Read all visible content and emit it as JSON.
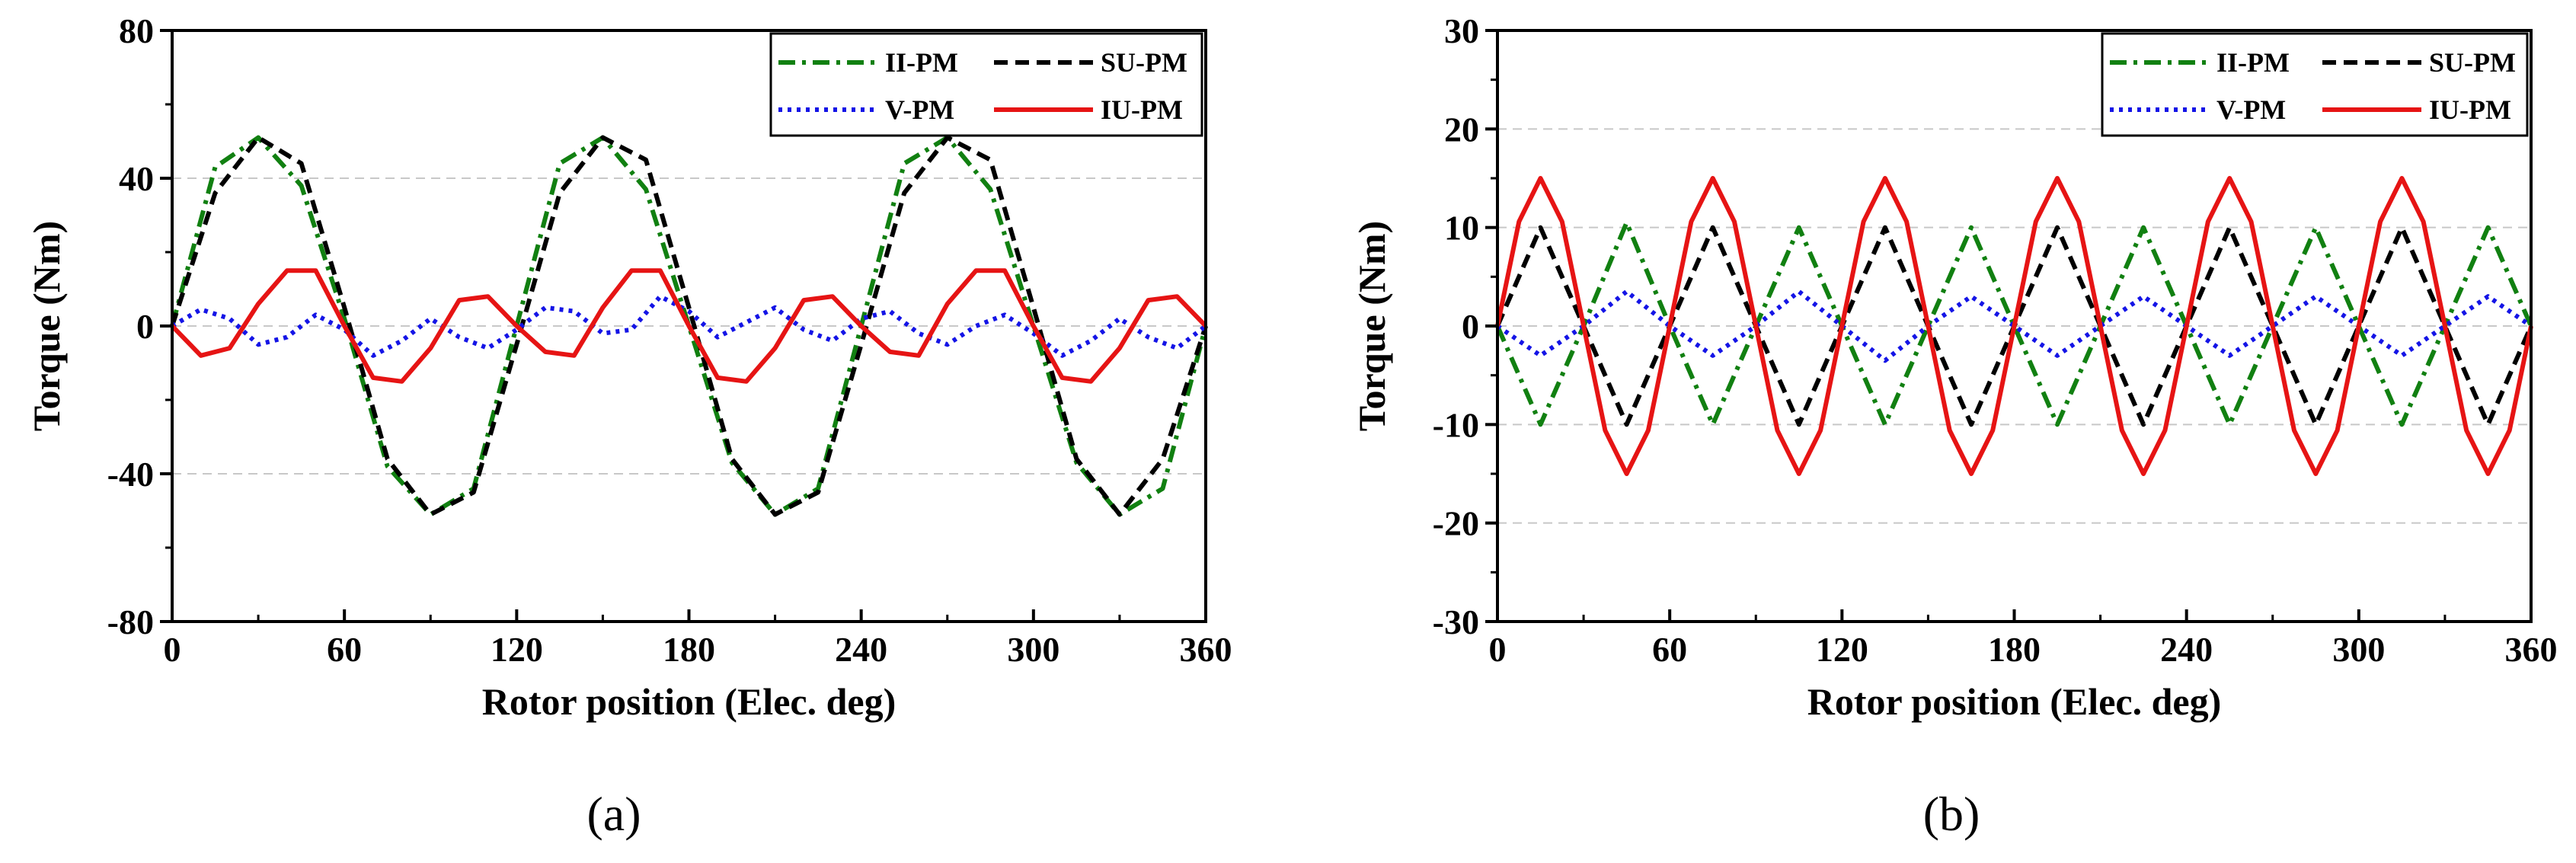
{
  "chart_data": [
    {
      "type": "line",
      "panel_label": "(a)",
      "xlabel": "Rotor position (Elec. deg)",
      "ylabel": "Torque (Nm)",
      "xlim": [
        0,
        360
      ],
      "ylim": [
        -80,
        80
      ],
      "xticks": [
        0,
        60,
        120,
        180,
        240,
        300,
        360
      ],
      "yticks": [
        -80,
        -40,
        0,
        40,
        80
      ],
      "grid_y": [
        -40,
        0,
        40
      ],
      "legend_position": "top-right",
      "series": [
        {
          "name": "II-PM",
          "color": "#118011",
          "dash": "dashdot",
          "x": [
            0,
            15,
            30,
            45,
            60,
            75,
            90,
            105,
            120,
            135,
            150,
            165,
            180,
            195,
            210,
            225,
            240,
            255,
            270,
            285,
            300,
            315,
            330,
            345,
            360
          ],
          "values": [
            0,
            43,
            51,
            38,
            2,
            -38,
            -51,
            -44,
            0,
            44,
            51,
            37,
            0,
            -37,
            -51,
            -44,
            0,
            44,
            51,
            37,
            0,
            -37,
            -51,
            -44,
            0
          ]
        },
        {
          "name": "SU-PM",
          "color": "#000000",
          "dash": "dash",
          "x": [
            0,
            15,
            30,
            45,
            60,
            75,
            90,
            105,
            120,
            135,
            150,
            165,
            180,
            195,
            210,
            225,
            240,
            255,
            270,
            285,
            300,
            315,
            330,
            345,
            360
          ],
          "values": [
            0,
            36,
            51,
            44,
            5,
            -36,
            -51,
            -45,
            -5,
            36,
            51,
            45,
            5,
            -36,
            -51,
            -45,
            -5,
            36,
            51,
            45,
            5,
            -36,
            -51,
            -36,
            0
          ]
        },
        {
          "name": "V-PM",
          "color": "#1414e6",
          "dash": "dot",
          "x": [
            0,
            10,
            20,
            30,
            40,
            50,
            60,
            70,
            80,
            90,
            100,
            110,
            120,
            130,
            140,
            150,
            160,
            170,
            180,
            190,
            200,
            210,
            220,
            230,
            240,
            250,
            260,
            270,
            280,
            290,
            300,
            310,
            320,
            330,
            340,
            350,
            360
          ],
          "values": [
            0,
            4.5,
            2,
            -5,
            -3,
            3,
            -1,
            -8,
            -4,
            2,
            -3,
            -6,
            -1,
            5,
            4,
            -2,
            -1,
            8,
            4,
            -3,
            1,
            5,
            -1,
            -4,
            2,
            4,
            -2,
            -5,
            0,
            3,
            -2,
            -8,
            -4,
            2,
            -3,
            -6,
            0
          ]
        },
        {
          "name": "IU-PM",
          "color": "#e61414",
          "dash": "solid",
          "x": [
            0,
            10,
            20,
            30,
            40,
            50,
            60,
            70,
            80,
            90,
            100,
            110,
            120,
            130,
            140,
            150,
            160,
            170,
            180,
            190,
            200,
            210,
            220,
            230,
            240,
            250,
            260,
            270,
            280,
            290,
            300,
            310,
            320,
            330,
            340,
            350,
            360
          ],
          "values": [
            0,
            -8,
            -6,
            6,
            15,
            15,
            0,
            -14,
            -15,
            -6,
            7,
            8,
            0,
            -7,
            -8,
            5,
            15,
            15,
            0,
            -14,
            -15,
            -6,
            7,
            8,
            0,
            -7,
            -8,
            6,
            15,
            15,
            0,
            -14,
            -15,
            -6,
            7,
            8,
            0
          ]
        }
      ]
    },
    {
      "type": "line",
      "panel_label": "(b)",
      "xlabel": "Rotor position (Elec. deg)",
      "ylabel": "Torque (Nm)",
      "xlim": [
        0,
        360
      ],
      "ylim": [
        -30,
        30
      ],
      "xticks": [
        0,
        60,
        120,
        180,
        240,
        300,
        360
      ],
      "yticks": [
        -30,
        -20,
        -10,
        0,
        10,
        20,
        30
      ],
      "grid_y": [
        -20,
        -10,
        0,
        10,
        20
      ],
      "legend_position": "top-right",
      "series": [
        {
          "name": "II-PM",
          "color": "#118011",
          "dash": "dashdot",
          "x": [
            0,
            15,
            30,
            45,
            60,
            75,
            90,
            105,
            120,
            135,
            150,
            165,
            180,
            195,
            210,
            225,
            240,
            255,
            270,
            285,
            300,
            315,
            330,
            345,
            360
          ],
          "values": [
            0,
            -10,
            0,
            10.5,
            0,
            -10,
            0,
            10,
            0,
            -10,
            0,
            10,
            0,
            -10,
            0,
            10,
            0,
            -10,
            0,
            10,
            0,
            -10,
            0,
            10,
            0
          ]
        },
        {
          "name": "SU-PM",
          "color": "#000000",
          "dash": "dash",
          "x": [
            0,
            15,
            30,
            45,
            60,
            75,
            90,
            105,
            120,
            135,
            150,
            165,
            180,
            195,
            210,
            225,
            240,
            255,
            270,
            285,
            300,
            315,
            330,
            345,
            360
          ],
          "values": [
            0,
            10,
            0,
            -10,
            0,
            10,
            0,
            -10,
            0,
            10,
            0,
            -10,
            0,
            10,
            0,
            -10,
            0,
            10,
            0,
            -10,
            0,
            10,
            0,
            -10,
            0
          ]
        },
        {
          "name": "V-PM",
          "color": "#1414e6",
          "dash": "dot",
          "x": [
            0,
            15,
            30,
            45,
            60,
            75,
            90,
            105,
            120,
            135,
            150,
            165,
            180,
            195,
            210,
            225,
            240,
            255,
            270,
            285,
            300,
            315,
            330,
            345,
            360
          ],
          "values": [
            0,
            -3,
            0,
            3.5,
            0,
            -3,
            0,
            3.5,
            0,
            -3.5,
            0,
            3,
            0,
            -3,
            0,
            3,
            0,
            -3,
            0,
            3,
            0,
            -3,
            0,
            3,
            0
          ]
        },
        {
          "name": "IU-PM",
          "color": "#e61414",
          "dash": "solid",
          "x": [
            0,
            7.5,
            15,
            22.5,
            30,
            37.5,
            45,
            52.5,
            60,
            67.5,
            75,
            82.5,
            90,
            97.5,
            105,
            112.5,
            120,
            127.5,
            135,
            142.5,
            150,
            157.5,
            165,
            172.5,
            180,
            187.5,
            195,
            202.5,
            210,
            217.5,
            225,
            232.5,
            240,
            247.5,
            255,
            262.5,
            270,
            277.5,
            285,
            292.5,
            300,
            307.5,
            315,
            322.5,
            330,
            337.5,
            345,
            352.5,
            360
          ],
          "values": [
            0,
            10.6,
            15,
            10.6,
            0,
            -10.6,
            -15,
            -10.6,
            0,
            10.6,
            15,
            10.6,
            0,
            -10.6,
            -15,
            -10.6,
            0,
            10.6,
            15,
            10.6,
            0,
            -10.6,
            -15,
            -10.6,
            0,
            10.6,
            15,
            10.6,
            0,
            -10.6,
            -15,
            -10.6,
            0,
            10.6,
            15,
            10.6,
            0,
            -10.6,
            -15,
            -10.6,
            0,
            10.6,
            15,
            10.6,
            0,
            -10.6,
            -15,
            -10.6,
            0
          ]
        }
      ]
    }
  ]
}
